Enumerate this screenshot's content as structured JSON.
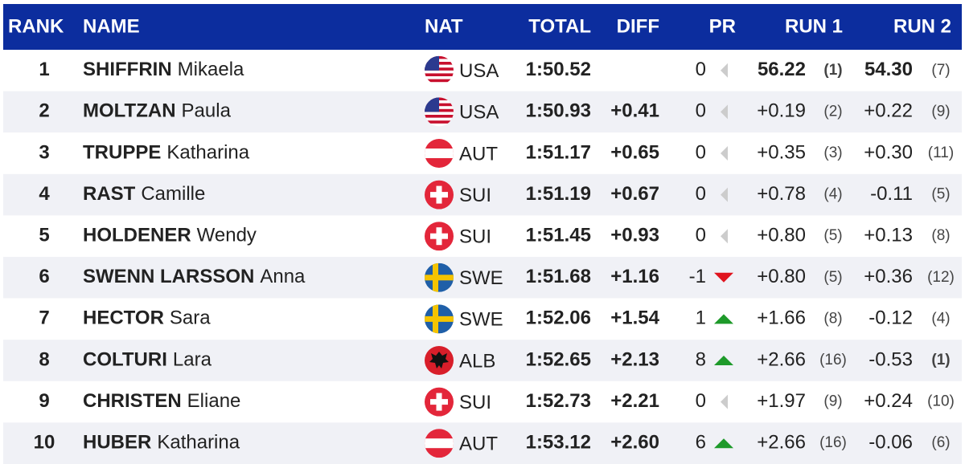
{
  "header": {
    "rank": "RANK",
    "name": "NAME",
    "nat": "NAT",
    "total": "TOTAL",
    "diff": "DIFF",
    "pr": "PR",
    "run1": "RUN 1",
    "run2": "RUN 2"
  },
  "rows": [
    {
      "rank": 1,
      "last": "SHIFFRIN",
      "first": "Mikaela",
      "flag": "us",
      "nat": "USA",
      "total": "1:50.52",
      "pr": 0,
      "pr_trend": "none",
      "run1": {
        "time": "56.22",
        "rank": "(1)",
        "fastest": true
      },
      "run2": {
        "time": "54.30",
        "rank": "(7)",
        "fastest": false
      }
    },
    {
      "rank": 2,
      "last": "MOLTZAN",
      "first": "Paula",
      "flag": "us",
      "nat": "USA",
      "total": "1:50.93",
      "diff": "+0.41",
      "pr": 0,
      "pr_trend": "none",
      "run1": {
        "time": "+0.19",
        "rank": "(2)",
        "fastest": false
      },
      "run2": {
        "time": "+0.22",
        "rank": "(9)",
        "fastest": false
      }
    },
    {
      "rank": 3,
      "last": "TRUPPE",
      "first": "Katharina",
      "flag": "at",
      "nat": "AUT",
      "total": "1:51.17",
      "diff": "+0.65",
      "pr": 0,
      "pr_trend": "none",
      "run1": {
        "time": "+0.35",
        "rank": "(3)",
        "fastest": false
      },
      "run2": {
        "time": "+0.30",
        "rank": "(11)",
        "fastest": false
      }
    },
    {
      "rank": 4,
      "last": "RAST",
      "first": "Camille",
      "flag": "ch",
      "nat": "SUI",
      "total": "1:51.19",
      "diff": "+0.67",
      "pr": 0,
      "pr_trend": "none",
      "run1": {
        "time": "+0.78",
        "rank": "(4)",
        "fastest": false
      },
      "run2": {
        "time": "-0.11",
        "rank": "(5)",
        "fastest": false
      }
    },
    {
      "rank": 5,
      "last": "HOLDENER",
      "first": "Wendy",
      "flag": "ch",
      "nat": "SUI",
      "total": "1:51.45",
      "diff": "+0.93",
      "pr": 0,
      "pr_trend": "none",
      "run1": {
        "time": "+0.80",
        "rank": "(5)",
        "fastest": false
      },
      "run2": {
        "time": "+0.13",
        "rank": "(8)",
        "fastest": false
      }
    },
    {
      "rank": 6,
      "last": "SWENN LARSSON",
      "first": "Anna",
      "flag": "se",
      "nat": "SWE",
      "total": "1:51.68",
      "diff": "+1.16",
      "pr": -1,
      "pr_trend": "down",
      "run1": {
        "time": "+0.80",
        "rank": "(5)",
        "fastest": false
      },
      "run2": {
        "time": "+0.36",
        "rank": "(12)",
        "fastest": false
      }
    },
    {
      "rank": 7,
      "last": "HECTOR",
      "first": "Sara",
      "flag": "se",
      "nat": "SWE",
      "total": "1:52.06",
      "diff": "+1.54",
      "pr": 1,
      "pr_trend": "up",
      "run1": {
        "time": "+1.66",
        "rank": "(8)",
        "fastest": false
      },
      "run2": {
        "time": "-0.12",
        "rank": "(4)",
        "fastest": false
      }
    },
    {
      "rank": 8,
      "last": "COLTURI",
      "first": "Lara",
      "flag": "al",
      "nat": "ALB",
      "total": "1:52.65",
      "diff": "+2.13",
      "pr": 8,
      "pr_trend": "up",
      "run1": {
        "time": "+2.66",
        "rank": "(16)",
        "fastest": false
      },
      "run2": {
        "time": "-0.53",
        "rank": "(1)",
        "fastest": true
      }
    },
    {
      "rank": 9,
      "last": "CHRISTEN",
      "first": "Eliane",
      "flag": "ch",
      "nat": "SUI",
      "total": "1:52.73",
      "diff": "+2.21",
      "pr": 0,
      "pr_trend": "none",
      "run1": {
        "time": "+1.97",
        "rank": "(9)",
        "fastest": false
      },
      "run2": {
        "time": "+0.24",
        "rank": "(10)",
        "fastest": false
      }
    },
    {
      "rank": 10,
      "last": "HUBER",
      "first": "Katharina",
      "flag": "at",
      "nat": "AUT",
      "total": "1:53.12",
      "diff": "+2.60",
      "pr": 6,
      "pr_trend": "up",
      "run1": {
        "time": "+2.66",
        "rank": "(16)",
        "fastest": false
      },
      "run2": {
        "time": "-0.06",
        "rank": "(6)",
        "fastest": false
      }
    }
  ]
}
